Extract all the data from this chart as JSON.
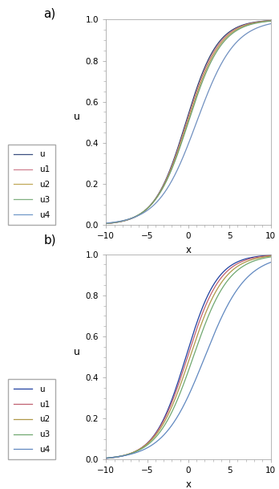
{
  "title_a": "a)",
  "title_b": "b)",
  "xlabel": "x",
  "ylabel": "u",
  "xlim": [
    -10,
    10
  ],
  "ylim": [
    0,
    1.0
  ],
  "yticks": [
    0.0,
    0.2,
    0.4,
    0.6,
    0.8,
    1.0
  ],
  "xticks": [
    -10,
    -5,
    0,
    5,
    10
  ],
  "legend_labels": [
    "u",
    "u1",
    "u2",
    "u3",
    "u4"
  ],
  "legend_colors_a": [
    "#3a4f80",
    "#d08090",
    "#c0a858",
    "#80b080",
    "#7098c8"
  ],
  "legend_colors_b": [
    "#2040a0",
    "#c06070",
    "#b09848",
    "#70a870",
    "#6088c0"
  ],
  "line_colors_a": [
    "#2b3f70",
    "#c87880",
    "#b8a050",
    "#70a070",
    "#7090c0"
  ],
  "line_colors_b": [
    "#2040a0",
    "#c06070",
    "#b09848",
    "#70a870",
    "#6088c0"
  ],
  "background_color": "#ffffff",
  "figsize": [
    3.48,
    6.09
  ],
  "dpi": 100,
  "spine_color": "#999999",
  "tick_color": "#999999"
}
